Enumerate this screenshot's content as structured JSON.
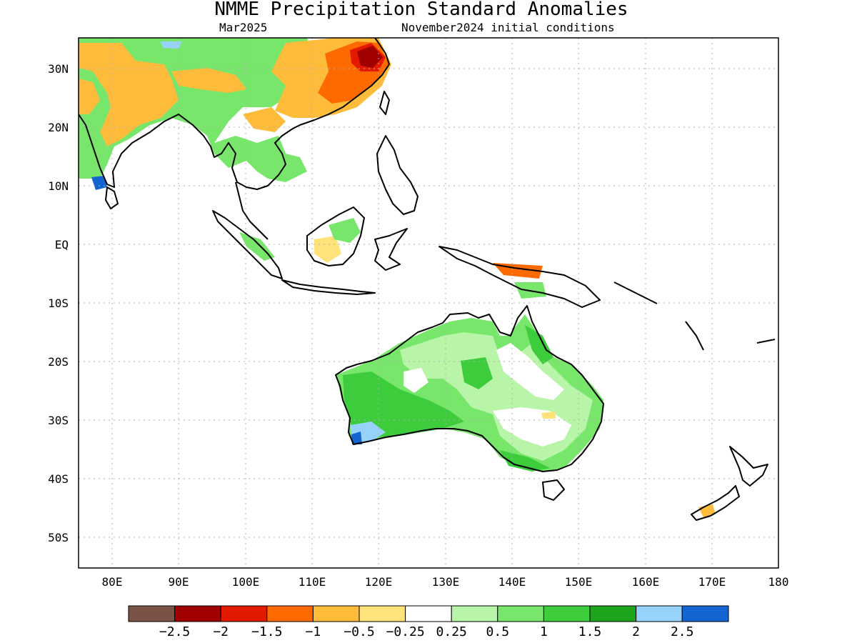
{
  "title": "NMME Precipitation Standard Anomalies",
  "subtitle_left": "Mar2025",
  "subtitle_right": "November2024 initial conditions",
  "lat_labels": [
    "30N",
    "20N",
    "10N",
    "EQ",
    "10S",
    "20S",
    "30S",
    "40S",
    "50S"
  ],
  "lon_labels": [
    "80E",
    "90E",
    "100E",
    "110E",
    "120E",
    "130E",
    "140E",
    "150E",
    "160E",
    "170E",
    "180"
  ],
  "colorbar": {
    "colors": [
      "#7a5246",
      "#a10000",
      "#e31a00",
      "#ff6a00",
      "#ffbb3a",
      "#ffe27a",
      "#ffffff",
      "#b8f5a8",
      "#78e66a",
      "#3ccc3c",
      "#1ea51e",
      "#96d2fa",
      "#1464d2"
    ],
    "labels": [
      "−2.5",
      "−2",
      "−1.5",
      "−1",
      "−0.5",
      "−0.25",
      "0.25",
      "0.5",
      "1",
      "1.5",
      "2",
      "2.5"
    ]
  }
}
